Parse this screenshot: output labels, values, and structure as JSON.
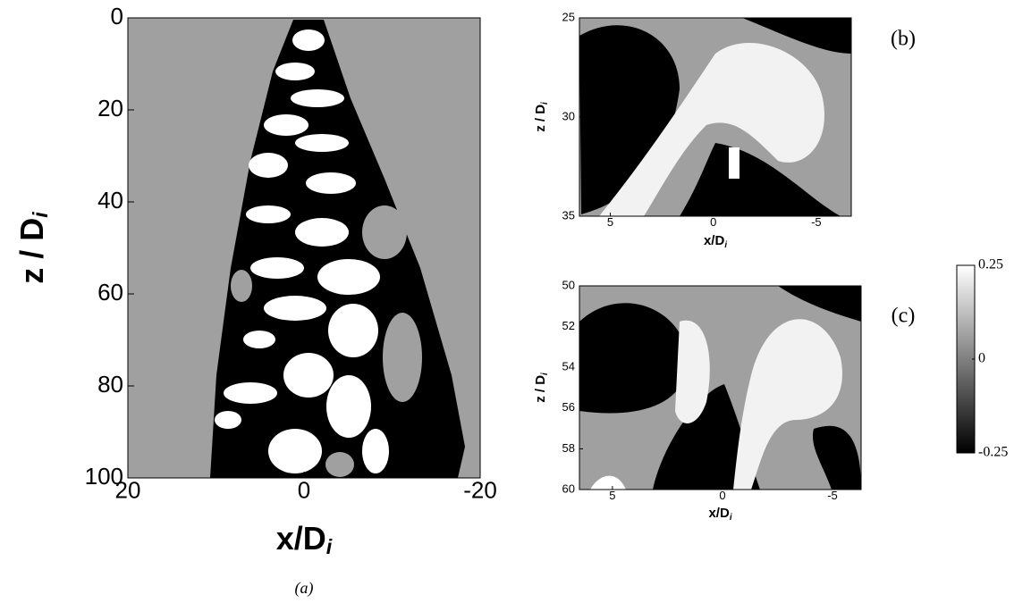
{
  "chart_data": [
    {
      "type": "contour",
      "xlabel": [
        "x/D",
        "i"
      ],
      "ylabel": [
        "z / D",
        "i"
      ],
      "caption": "(a)",
      "xlim": [
        20,
        -20
      ],
      "xticks": [
        20,
        0,
        -20
      ],
      "ylim": [
        100,
        0
      ],
      "yticks": [
        0,
        20,
        40,
        60,
        80,
        100
      ]
    },
    {
      "type": "contour",
      "xlabel": [
        "x/D",
        "i"
      ],
      "ylabel": [
        "z / D",
        "i"
      ],
      "caption": "(b)",
      "xlim": [
        6.5,
        -6.7
      ],
      "xticks": [
        5,
        0,
        -5
      ],
      "ylim": [
        35,
        25
      ],
      "yticks": [
        25,
        30,
        35
      ]
    },
    {
      "type": "contour",
      "xlabel": [
        "x/D",
        "i"
      ],
      "ylabel": [
        "z / D",
        "i"
      ],
      "caption": "(c)",
      "xlim": [
        6.5,
        -6.3
      ],
      "xticks": [
        5,
        0,
        -5
      ],
      "ylim": [
        60,
        50
      ],
      "yticks": [
        50,
        52,
        54,
        56,
        58,
        60
      ]
    },
    {
      "type": "colorbar",
      "clim": [
        -0.25,
        0.25
      ],
      "ticks": [
        0.25,
        0,
        -0.25
      ]
    }
  ]
}
